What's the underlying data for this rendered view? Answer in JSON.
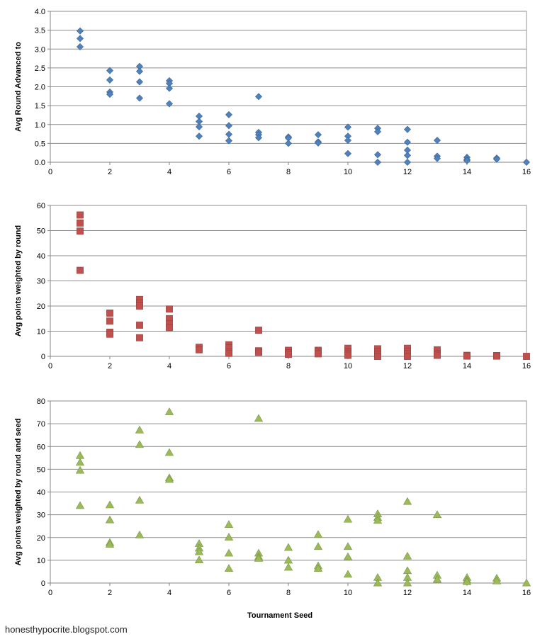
{
  "footer": {
    "credit": "honesthypocrite.blogspot.com"
  },
  "chart_data": [
    {
      "type": "scatter",
      "marker": "diamond",
      "color": "#4F81BD",
      "xlabel": "",
      "ylabel": "Avg Round Advanced to",
      "xlim": [
        0,
        16
      ],
      "ylim": [
        0,
        4
      ],
      "xticks": [
        "0",
        "2",
        "4",
        "6",
        "8",
        "10",
        "12",
        "14",
        "16"
      ],
      "yticks": [
        "0.0",
        "0.5",
        "1.0",
        "1.5",
        "2.0",
        "2.5",
        "3.0",
        "3.5",
        "4.0"
      ],
      "ytick_values": [
        0,
        0.5,
        1,
        1.5,
        2,
        2.5,
        3,
        3.5,
        4
      ],
      "grid": "horizontal",
      "points": [
        [
          1,
          3.48
        ],
        [
          1,
          3.28
        ],
        [
          1,
          3.06
        ],
        [
          2,
          2.43
        ],
        [
          2,
          2.18
        ],
        [
          2,
          1.86
        ],
        [
          2,
          1.8
        ],
        [
          3,
          2.54
        ],
        [
          3,
          2.41
        ],
        [
          3,
          2.13
        ],
        [
          3,
          1.7
        ],
        [
          4,
          2.16
        ],
        [
          4,
          2.09
        ],
        [
          4,
          1.96
        ],
        [
          4,
          1.55
        ],
        [
          5,
          1.22
        ],
        [
          5,
          1.08
        ],
        [
          5,
          0.94
        ],
        [
          5,
          0.69
        ],
        [
          6,
          1.26
        ],
        [
          6,
          0.97
        ],
        [
          6,
          0.74
        ],
        [
          6,
          0.57
        ],
        [
          7,
          1.74
        ],
        [
          7,
          0.79
        ],
        [
          7,
          0.73
        ],
        [
          7,
          0.65
        ],
        [
          8,
          0.67
        ],
        [
          8,
          0.64
        ],
        [
          8,
          0.5
        ],
        [
          9,
          0.73
        ],
        [
          9,
          0.54
        ],
        [
          9,
          0.51
        ],
        [
          10,
          0.93
        ],
        [
          10,
          0.69
        ],
        [
          10,
          0.58
        ],
        [
          10,
          0.23
        ],
        [
          11,
          0.9
        ],
        [
          11,
          0.81
        ],
        [
          11,
          0.2
        ],
        [
          11,
          0.0
        ],
        [
          12,
          0.87
        ],
        [
          12,
          0.53
        ],
        [
          12,
          0.32
        ],
        [
          12,
          0.18
        ],
        [
          12,
          0.0
        ],
        [
          13,
          0.58
        ],
        [
          13,
          0.16
        ],
        [
          13,
          0.1
        ],
        [
          14,
          0.13
        ],
        [
          14,
          0.07
        ],
        [
          14,
          0.04
        ],
        [
          15,
          0.11
        ],
        [
          15,
          0.08
        ],
        [
          16,
          0.0
        ]
      ]
    },
    {
      "type": "scatter",
      "marker": "square",
      "color": "#C0504D",
      "xlabel": "",
      "ylabel": "Avg points weighted by round",
      "xlim": [
        0,
        16
      ],
      "ylim": [
        0,
        60
      ],
      "xticks": [
        "0",
        "2",
        "4",
        "6",
        "8",
        "10",
        "12",
        "14",
        "16"
      ],
      "yticks": [
        "0",
        "10",
        "20",
        "30",
        "40",
        "50",
        "60"
      ],
      "ytick_values": [
        0,
        10,
        20,
        30,
        40,
        50,
        60
      ],
      "grid": "horizontal",
      "points": [
        [
          1,
          56.2
        ],
        [
          1,
          53.0
        ],
        [
          1,
          49.8
        ],
        [
          1,
          34.2
        ],
        [
          2,
          17.2
        ],
        [
          2,
          14.0
        ],
        [
          2,
          9.6
        ],
        [
          2,
          8.8
        ],
        [
          3,
          22.6
        ],
        [
          3,
          21.2
        ],
        [
          3,
          20.0
        ],
        [
          3,
          12.4
        ],
        [
          3,
          7.4
        ],
        [
          4,
          18.8
        ],
        [
          4,
          15.0
        ],
        [
          4,
          13.0
        ],
        [
          4,
          11.4
        ],
        [
          5,
          3.6
        ],
        [
          5,
          2.6
        ],
        [
          6,
          4.6
        ],
        [
          6,
          3.4
        ],
        [
          6,
          1.8
        ],
        [
          6,
          1.2
        ],
        [
          7,
          10.4
        ],
        [
          7,
          2.2
        ],
        [
          7,
          1.6
        ],
        [
          8,
          2.4
        ],
        [
          8,
          1.4
        ],
        [
          8,
          0.8
        ],
        [
          9,
          2.4
        ],
        [
          9,
          1.6
        ],
        [
          9,
          1.0
        ],
        [
          10,
          3.2
        ],
        [
          10,
          2.0
        ],
        [
          10,
          1.2
        ],
        [
          10,
          0.4
        ],
        [
          11,
          3.0
        ],
        [
          11,
          1.8
        ],
        [
          11,
          0.8
        ],
        [
          11,
          0.0
        ],
        [
          12,
          3.2
        ],
        [
          12,
          2.0
        ],
        [
          12,
          1.0
        ],
        [
          12,
          0.0
        ],
        [
          13,
          2.6
        ],
        [
          13,
          1.0
        ],
        [
          13,
          0.4
        ],
        [
          14,
          0.4
        ],
        [
          14,
          0.1
        ],
        [
          15,
          0.3
        ],
        [
          15,
          0.1
        ],
        [
          16,
          0.0
        ]
      ]
    },
    {
      "type": "scatter",
      "marker": "triangle",
      "color": "#9BBB59",
      "xlabel": "Tournament Seed",
      "ylabel": "Avg points weighted by round and seed",
      "xlim": [
        0,
        16
      ],
      "ylim": [
        0,
        80
      ],
      "xticks": [
        "0",
        "2",
        "4",
        "6",
        "8",
        "10",
        "12",
        "14",
        "16"
      ],
      "yticks": [
        "0",
        "10",
        "20",
        "30",
        "40",
        "50",
        "60",
        "70",
        "80"
      ],
      "ytick_values": [
        0,
        10,
        20,
        30,
        40,
        50,
        60,
        70,
        80
      ],
      "grid": "horizontal",
      "points": [
        [
          1,
          56.0
        ],
        [
          1,
          53.0
        ],
        [
          1,
          49.5
        ],
        [
          1,
          34.0
        ],
        [
          2,
          34.3
        ],
        [
          2,
          27.7
        ],
        [
          2,
          17.8
        ],
        [
          2,
          17.0
        ],
        [
          3,
          67.2
        ],
        [
          3,
          60.8
        ],
        [
          3,
          36.4
        ],
        [
          3,
          21.1
        ],
        [
          4,
          75.2
        ],
        [
          4,
          57.3
        ],
        [
          4,
          46.2
        ],
        [
          4,
          45.5
        ],
        [
          5,
          17.3
        ],
        [
          5,
          15.3
        ],
        [
          5,
          13.7
        ],
        [
          5,
          10.1
        ],
        [
          6,
          25.7
        ],
        [
          6,
          20.1
        ],
        [
          6,
          13.1
        ],
        [
          6,
          6.4
        ],
        [
          7,
          72.3
        ],
        [
          7,
          13.1
        ],
        [
          7,
          11.5
        ],
        [
          7,
          10.8
        ],
        [
          8,
          15.6
        ],
        [
          8,
          10.0
        ],
        [
          8,
          6.9
        ],
        [
          9,
          21.3
        ],
        [
          9,
          16.0
        ],
        [
          9,
          7.5
        ],
        [
          9,
          6.4
        ],
        [
          10,
          28.0
        ],
        [
          10,
          16.0
        ],
        [
          10,
          11.5
        ],
        [
          10,
          3.8
        ],
        [
          11,
          30.4
        ],
        [
          11,
          28.8
        ],
        [
          11,
          27.5
        ],
        [
          11,
          2.4
        ],
        [
          11,
          0.0
        ],
        [
          12,
          35.8
        ],
        [
          12,
          11.8
        ],
        [
          12,
          5.4
        ],
        [
          12,
          2.4
        ],
        [
          12,
          0.0
        ],
        [
          13,
          30.0
        ],
        [
          13,
          3.4
        ],
        [
          13,
          1.6
        ],
        [
          14,
          2.4
        ],
        [
          14,
          1.3
        ],
        [
          14,
          0.6
        ],
        [
          15,
          2.1
        ],
        [
          15,
          0.9
        ],
        [
          16,
          0.0
        ]
      ]
    }
  ]
}
